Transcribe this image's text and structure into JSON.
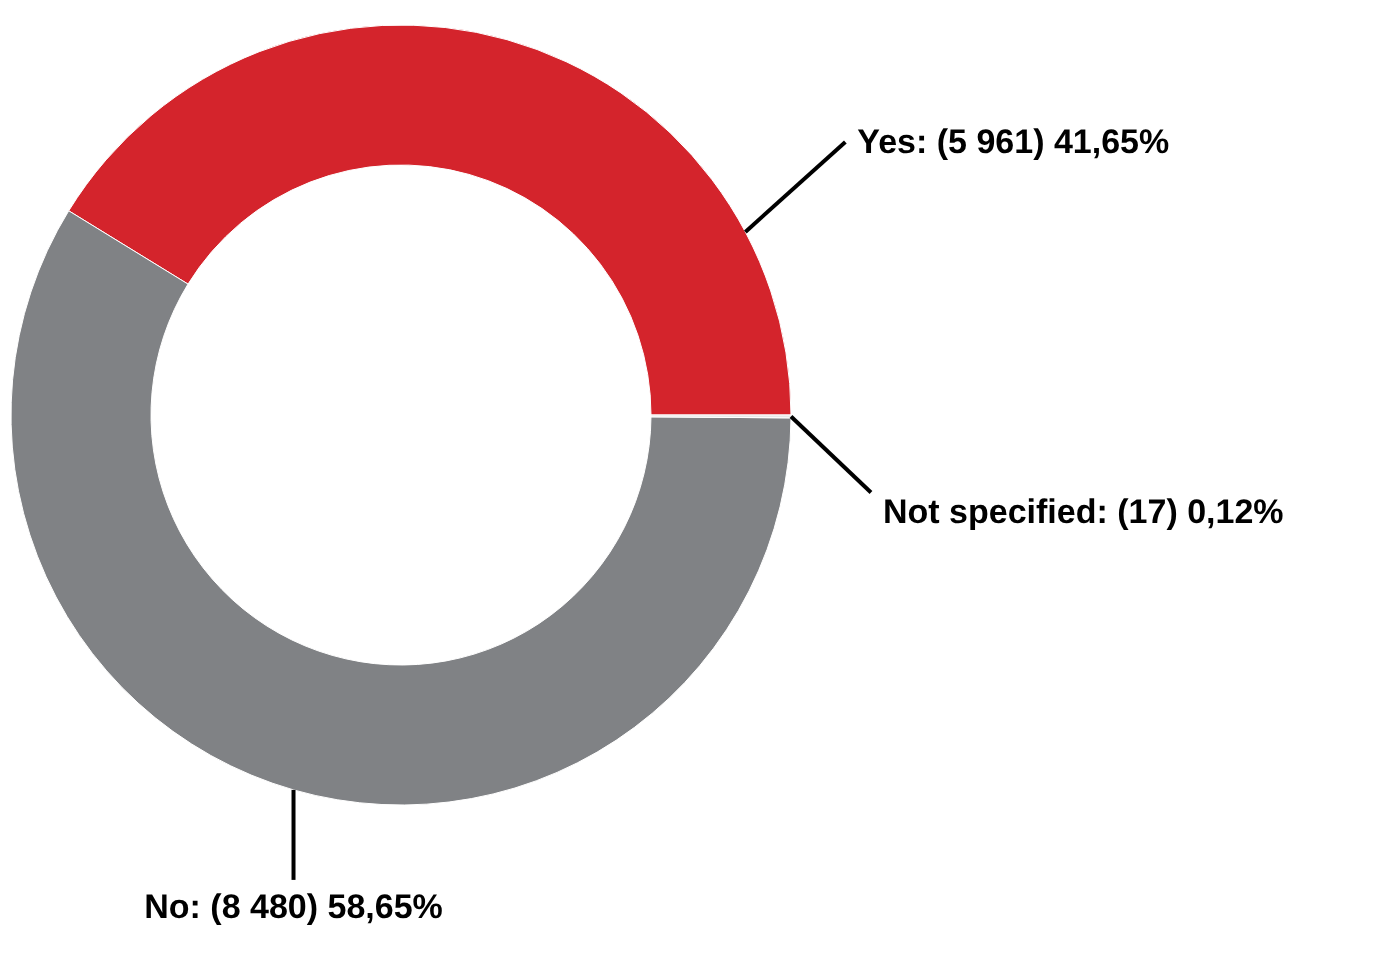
{
  "chart_data": {
    "type": "donut",
    "categories": [
      "Yes",
      "No",
      "Not specified"
    ],
    "values": [
      5961,
      8480,
      17
    ],
    "value_labels": [
      "(5 961) 41,65%",
      "(8 480) 58,65%",
      "(17) 0,12%"
    ],
    "colors": [
      "#d4242c",
      "#808285",
      "#e8e8e8"
    ]
  }
}
